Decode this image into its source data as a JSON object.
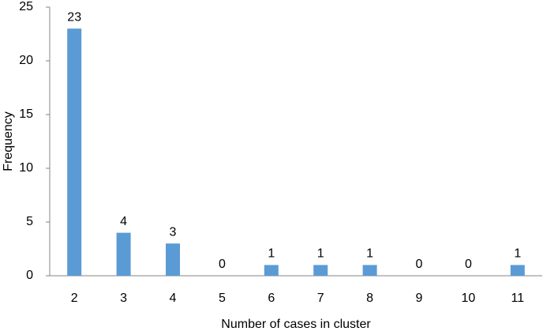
{
  "chart_data": {
    "type": "bar",
    "x_label": "Number of cases in cluster",
    "y_label": "Frequency",
    "categories": [
      "2",
      "3",
      "4",
      "5",
      "6",
      "7",
      "8",
      "9",
      "10",
      "11"
    ],
    "values": [
      23,
      4,
      3,
      0,
      1,
      1,
      1,
      0,
      0,
      1
    ],
    "color": "#5b9bd5",
    "ylim": [
      0,
      25
    ],
    "yticks": [
      0,
      5,
      10,
      15,
      20,
      25
    ],
    "grid": false
  }
}
